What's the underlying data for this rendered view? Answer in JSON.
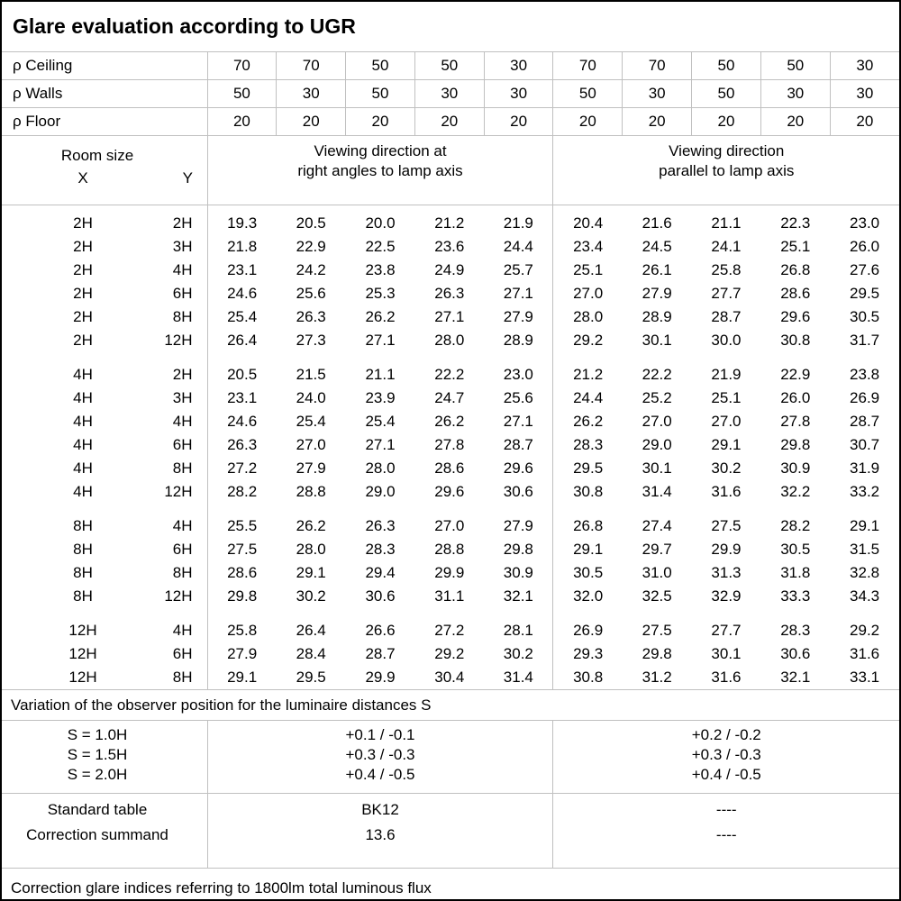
{
  "title": "Glare evaluation according to UGR",
  "reflectance_rows": [
    {
      "label": "ρ Ceiling",
      "values": [
        "70",
        "70",
        "50",
        "50",
        "30",
        "70",
        "70",
        "50",
        "50",
        "30"
      ]
    },
    {
      "label": "ρ Walls",
      "values": [
        "50",
        "30",
        "50",
        "30",
        "30",
        "50",
        "30",
        "50",
        "30",
        "30"
      ]
    },
    {
      "label": "ρ Floor",
      "values": [
        "20",
        "20",
        "20",
        "20",
        "20",
        "20",
        "20",
        "20",
        "20",
        "20"
      ]
    }
  ],
  "room_size_header": {
    "title": "Room size",
    "x": "X",
    "y": "Y"
  },
  "group_headers": {
    "right_angles": {
      "line1": "Viewing direction at",
      "line2": "right angles to lamp axis"
    },
    "parallel": {
      "line1": "Viewing direction",
      "line2": "parallel to lamp axis"
    }
  },
  "ugr_blocks": [
    {
      "rows": [
        {
          "x": "2H",
          "y": "2H",
          "values": [
            "19.3",
            "20.5",
            "20.0",
            "21.2",
            "21.9",
            "20.4",
            "21.6",
            "21.1",
            "22.3",
            "23.0"
          ]
        },
        {
          "x": "2H",
          "y": "3H",
          "values": [
            "21.8",
            "22.9",
            "22.5",
            "23.6",
            "24.4",
            "23.4",
            "24.5",
            "24.1",
            "25.1",
            "26.0"
          ]
        },
        {
          "x": "2H",
          "y": "4H",
          "values": [
            "23.1",
            "24.2",
            "23.8",
            "24.9",
            "25.7",
            "25.1",
            "26.1",
            "25.8",
            "26.8",
            "27.6"
          ]
        },
        {
          "x": "2H",
          "y": "6H",
          "values": [
            "24.6",
            "25.6",
            "25.3",
            "26.3",
            "27.1",
            "27.0",
            "27.9",
            "27.7",
            "28.6",
            "29.5"
          ]
        },
        {
          "x": "2H",
          "y": "8H",
          "values": [
            "25.4",
            "26.3",
            "26.2",
            "27.1",
            "27.9",
            "28.0",
            "28.9",
            "28.7",
            "29.6",
            "30.5"
          ]
        },
        {
          "x": "2H",
          "y": "12H",
          "values": [
            "26.4",
            "27.3",
            "27.1",
            "28.0",
            "28.9",
            "29.2",
            "30.1",
            "30.0",
            "30.8",
            "31.7"
          ]
        }
      ]
    },
    {
      "rows": [
        {
          "x": "4H",
          "y": "2H",
          "values": [
            "20.5",
            "21.5",
            "21.1",
            "22.2",
            "23.0",
            "21.2",
            "22.2",
            "21.9",
            "22.9",
            "23.8"
          ]
        },
        {
          "x": "4H",
          "y": "3H",
          "values": [
            "23.1",
            "24.0",
            "23.9",
            "24.7",
            "25.6",
            "24.4",
            "25.2",
            "25.1",
            "26.0",
            "26.9"
          ]
        },
        {
          "x": "4H",
          "y": "4H",
          "values": [
            "24.6",
            "25.4",
            "25.4",
            "26.2",
            "27.1",
            "26.2",
            "27.0",
            "27.0",
            "27.8",
            "28.7"
          ]
        },
        {
          "x": "4H",
          "y": "6H",
          "values": [
            "26.3",
            "27.0",
            "27.1",
            "27.8",
            "28.7",
            "28.3",
            "29.0",
            "29.1",
            "29.8",
            "30.7"
          ]
        },
        {
          "x": "4H",
          "y": "8H",
          "values": [
            "27.2",
            "27.9",
            "28.0",
            "28.6",
            "29.6",
            "29.5",
            "30.1",
            "30.2",
            "30.9",
            "31.9"
          ]
        },
        {
          "x": "4H",
          "y": "12H",
          "values": [
            "28.2",
            "28.8",
            "29.0",
            "29.6",
            "30.6",
            "30.8",
            "31.4",
            "31.6",
            "32.2",
            "33.2"
          ]
        }
      ]
    },
    {
      "rows": [
        {
          "x": "8H",
          "y": "4H",
          "values": [
            "25.5",
            "26.2",
            "26.3",
            "27.0",
            "27.9",
            "26.8",
            "27.4",
            "27.5",
            "28.2",
            "29.1"
          ]
        },
        {
          "x": "8H",
          "y": "6H",
          "values": [
            "27.5",
            "28.0",
            "28.3",
            "28.8",
            "29.8",
            "29.1",
            "29.7",
            "29.9",
            "30.5",
            "31.5"
          ]
        },
        {
          "x": "8H",
          "y": "8H",
          "values": [
            "28.6",
            "29.1",
            "29.4",
            "29.9",
            "30.9",
            "30.5",
            "31.0",
            "31.3",
            "31.8",
            "32.8"
          ]
        },
        {
          "x": "8H",
          "y": "12H",
          "values": [
            "29.8",
            "30.2",
            "30.6",
            "31.1",
            "32.1",
            "32.0",
            "32.5",
            "32.9",
            "33.3",
            "34.3"
          ]
        }
      ]
    },
    {
      "rows": [
        {
          "x": "12H",
          "y": "4H",
          "values": [
            "25.8",
            "26.4",
            "26.6",
            "27.2",
            "28.1",
            "26.9",
            "27.5",
            "27.7",
            "28.3",
            "29.2"
          ]
        },
        {
          "x": "12H",
          "y": "6H",
          "values": [
            "27.9",
            "28.4",
            "28.7",
            "29.2",
            "30.2",
            "29.3",
            "29.8",
            "30.1",
            "30.6",
            "31.6"
          ]
        },
        {
          "x": "12H",
          "y": "8H",
          "values": [
            "29.1",
            "29.5",
            "29.9",
            "30.4",
            "31.4",
            "30.8",
            "31.2",
            "31.6",
            "32.1",
            "33.1"
          ]
        }
      ]
    }
  ],
  "variation_note": "Variation of the observer position for the luminaire distances S",
  "spacing_rows": [
    {
      "label": "S = 1.0H",
      "right_angles": "+0.1 / -0.1",
      "parallel": "+0.2 / -0.2"
    },
    {
      "label": "S = 1.5H",
      "right_angles": "+0.3 / -0.3",
      "parallel": "+0.3 / -0.3"
    },
    {
      "label": "S = 2.0H",
      "right_angles": "+0.4 / -0.5",
      "parallel": "+0.4 / -0.5"
    }
  ],
  "summary_rows": [
    {
      "label": "Standard table",
      "right_angles": "BK12",
      "parallel": "----"
    },
    {
      "label": "Correction summand",
      "right_angles": "13.6",
      "parallel": "----"
    }
  ],
  "footer_note": "Correction glare indices referring to 1800lm total luminous flux",
  "colors": {
    "background": "#ffffff",
    "text": "#000000",
    "grid_line": "#c0c0c0",
    "outer_border": "#000000"
  }
}
